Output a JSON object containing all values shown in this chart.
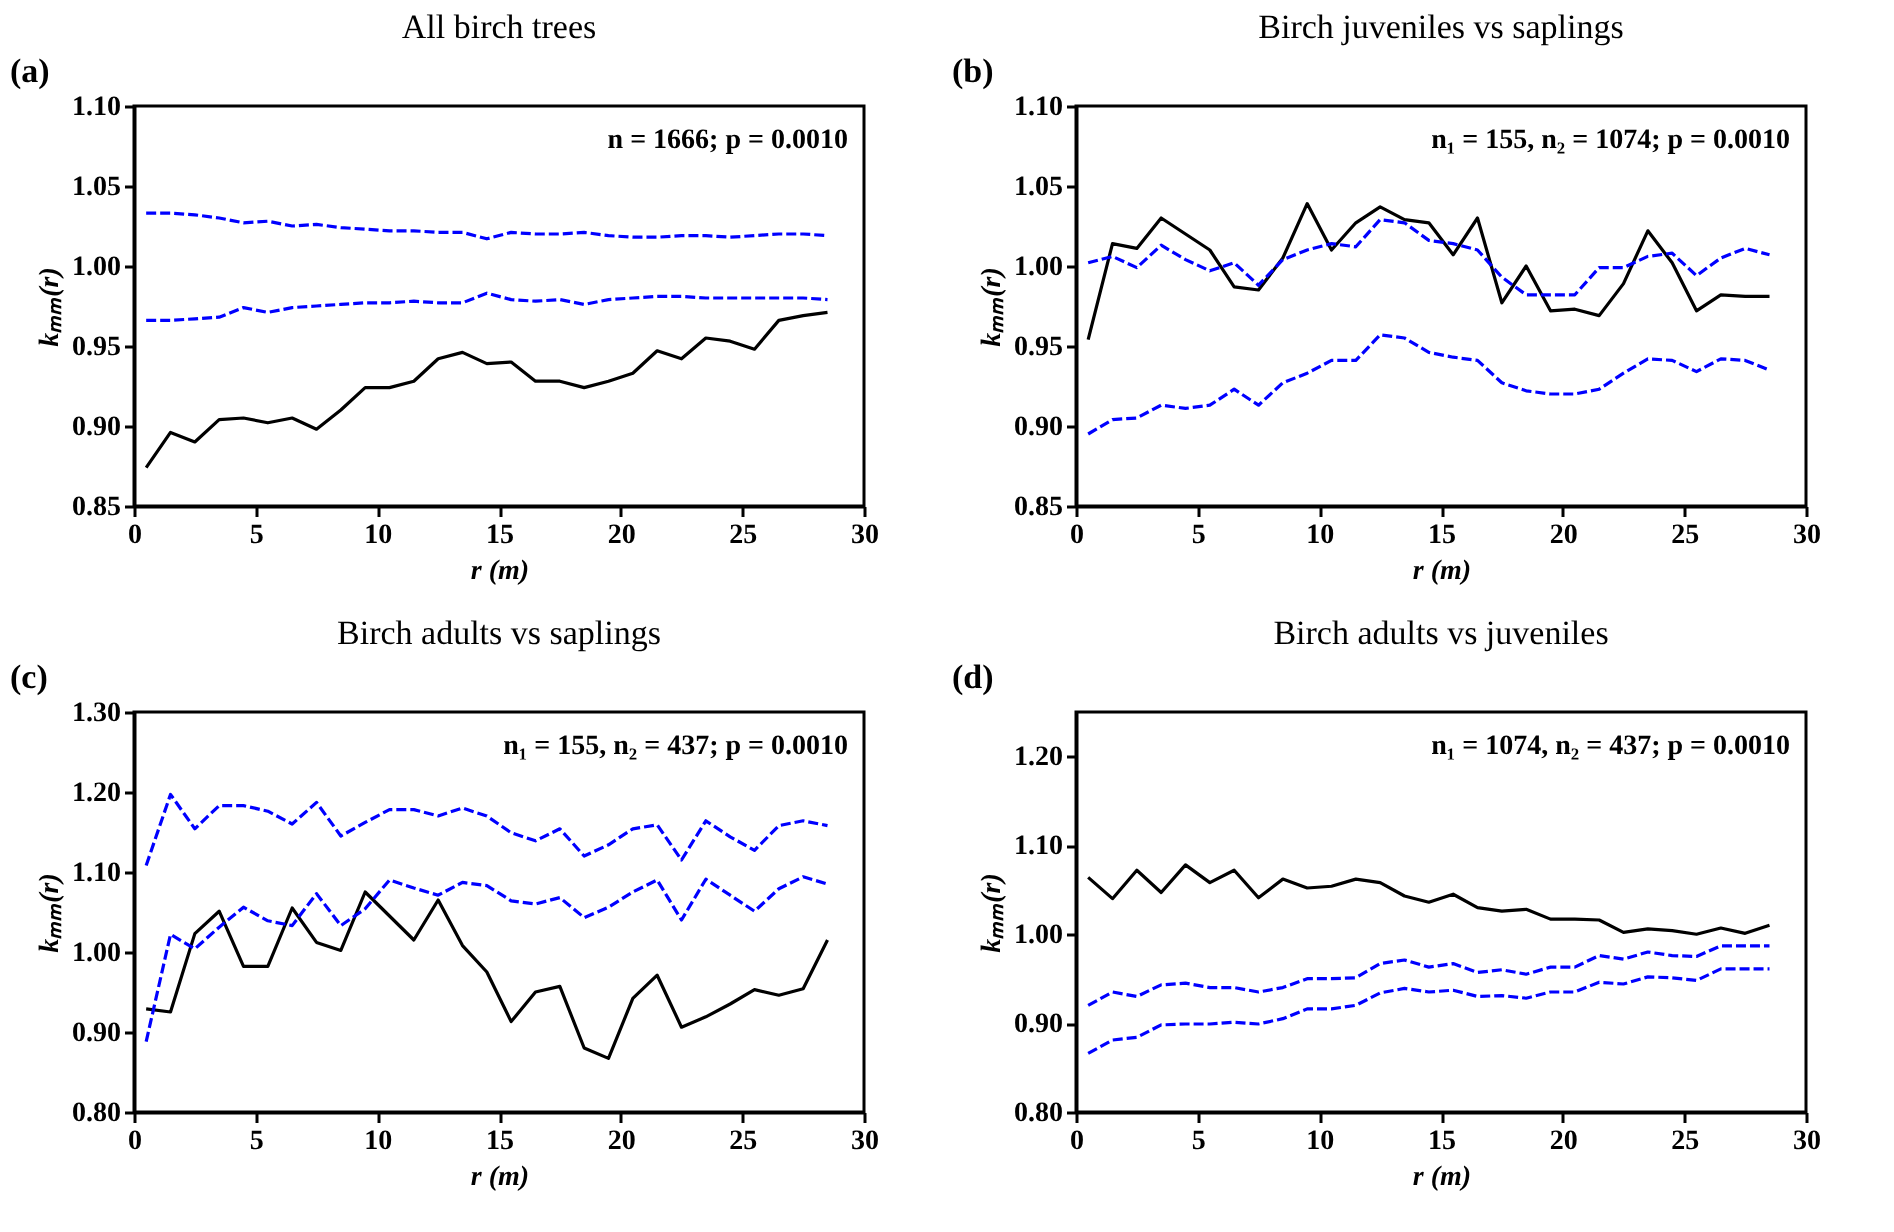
{
  "chart_data": [
    {
      "type": "line",
      "title": "All birch trees",
      "xlabel": "r (m)",
      "ylabel": "kₘₘ(r)",
      "annotations": [
        "(a)",
        "n = 1666; p = 0.0010"
      ],
      "x": [
        0.5,
        1.5,
        2.5,
        3.5,
        4.5,
        5.5,
        6.5,
        7.5,
        8.5,
        9.5,
        10.5,
        11.5,
        12.5,
        13.5,
        14.5,
        15.5,
        16.5,
        17.5,
        18.5,
        19.5,
        20.5,
        21.5,
        22.5,
        23.5,
        24.5,
        25.5,
        26.5,
        27.5,
        28.5
      ],
      "xlim": [
        0,
        30
      ],
      "xticks": [
        0,
        5,
        10,
        15,
        20,
        25,
        30
      ],
      "ylim": [
        0.85,
        1.1
      ],
      "yticks": [
        0.85,
        {
          "value": 0.9,
          "label": "0.90"
        },
        0.95,
        {
          "value": 1,
          "label": "1.00"
        },
        1.05,
        {
          "value": 1.1,
          "label": "1.10"
        }
      ],
      "series": [
        {
          "color": "#000000",
          "line_style": "solid",
          "values": [
            0.874,
            0.896,
            0.89,
            0.904,
            0.905,
            0.902,
            0.905,
            0.898,
            0.91,
            0.924,
            0.924,
            0.928,
            0.942,
            0.946,
            0.939,
            0.94,
            0.928,
            0.928,
            0.924,
            0.928,
            0.933,
            0.947,
            0.942,
            0.955,
            0.953,
            0.948,
            0.966,
            0.969,
            0.971
          ]
        },
        {
          "color": "#0000ff",
          "line_style": "dashed",
          "values": [
            1.033,
            1.033,
            1.032,
            1.03,
            1.027,
            1.028,
            1.025,
            1.026,
            1.024,
            1.023,
            1.022,
            1.022,
            1.021,
            1.021,
            1.017,
            1.021,
            1.02,
            1.02,
            1.021,
            1.019,
            1.018,
            1.018,
            1.019,
            1.019,
            1.018,
            1.019,
            1.02,
            1.02,
            1.019
          ]
        },
        {
          "color": "#0000ff",
          "line_style": "dashed",
          "values": [
            0.966,
            0.966,
            0.967,
            0.968,
            0.974,
            0.971,
            0.974,
            0.975,
            0.976,
            0.977,
            0.977,
            0.978,
            0.977,
            0.977,
            0.983,
            0.979,
            0.978,
            0.979,
            0.976,
            0.979,
            0.98,
            0.981,
            0.981,
            0.98,
            0.98,
            0.98,
            0.98,
            0.98,
            0.979
          ]
        }
      ]
    },
    {
      "type": "line",
      "title": "Birch juveniles vs saplings",
      "xlabel": "r (m)",
      "ylabel": "kₘₘ(r)",
      "annotations": [
        "(b)",
        "n₁ = 155, n₂ = 1074; p = 0.0010"
      ],
      "x": [
        0.5,
        1.5,
        2.5,
        3.5,
        4.5,
        5.5,
        6.5,
        7.5,
        8.5,
        9.5,
        10.5,
        11.5,
        12.5,
        13.5,
        14.5,
        15.5,
        16.5,
        17.5,
        18.5,
        19.5,
        20.5,
        21.5,
        22.5,
        23.5,
        24.5,
        25.5,
        26.5,
        27.5,
        28.5
      ],
      "xlim": [
        0,
        30
      ],
      "xticks": [
        0,
        5,
        10,
        15,
        20,
        25,
        30
      ],
      "ylim": [
        0.85,
        1.1
      ],
      "yticks": [
        0.85,
        {
          "value": 0.9,
          "label": "0.90"
        },
        0.95,
        {
          "value": 1,
          "label": "1.00"
        },
        1.05,
        {
          "value": 1.1,
          "label": "1.10"
        }
      ],
      "series": [
        {
          "color": "#000000",
          "line_style": "solid",
          "values": [
            0.954,
            1.014,
            1.011,
            1.03,
            1.02,
            1.01,
            0.987,
            0.985,
            1.005,
            1.039,
            1.01,
            1.027,
            1.037,
            1.029,
            1.027,
            1.007,
            1.03,
            0.977,
            1.0,
            0.972,
            0.973,
            0.969,
            0.989,
            1.022,
            1.002,
            0.972,
            0.982,
            0.981,
            0.981
          ]
        },
        {
          "color": "#0000ff",
          "line_style": "dashed",
          "values": [
            1.002,
            1.006,
            0.999,
            1.013,
            1.004,
            0.997,
            1.002,
            0.988,
            1.004,
            1.01,
            1.014,
            1.012,
            1.029,
            1.027,
            1.016,
            1.014,
            1.01,
            0.993,
            0.982,
            0.982,
            0.982,
            0.999,
            0.999,
            1.006,
            1.008,
            0.994,
            1.005,
            1.011,
            1.007
          ]
        },
        {
          "color": "#0000ff",
          "line_style": "dashed",
          "values": [
            0.895,
            0.904,
            0.905,
            0.913,
            0.911,
            0.913,
            0.923,
            0.913,
            0.927,
            0.933,
            0.941,
            0.941,
            0.957,
            0.955,
            0.946,
            0.943,
            0.941,
            0.927,
            0.922,
            0.92,
            0.92,
            0.923,
            0.933,
            0.942,
            0.941,
            0.934,
            0.942,
            0.941,
            0.935
          ]
        }
      ]
    },
    {
      "type": "line",
      "title": "Birch adults vs saplings",
      "xlabel": "r (m)",
      "ylabel": "kₘₘ(r)",
      "annotations": [
        "(c)",
        "n₁ = 155, n₂ = 437; p = 0.0010"
      ],
      "x": [
        0.5,
        1.5,
        2.5,
        3.5,
        4.5,
        5.5,
        6.5,
        7.5,
        8.5,
        9.5,
        10.5,
        11.5,
        12.5,
        13.5,
        14.5,
        15.5,
        16.5,
        17.5,
        18.5,
        19.5,
        20.5,
        21.5,
        22.5,
        23.5,
        24.5,
        25.5,
        26.5,
        27.5,
        28.5
      ],
      "xlim": [
        0,
        30
      ],
      "xticks": [
        0,
        5,
        10,
        15,
        20,
        25,
        30
      ],
      "ylim": [
        0.8,
        1.3
      ],
      "yticks": [
        {
          "value": 0.8,
          "label": "0.80"
        },
        {
          "value": 0.9,
          "label": "0.90"
        },
        {
          "value": 1,
          "label": "1.00"
        },
        {
          "value": 1.1,
          "label": "1.10"
        },
        {
          "value": 1.2,
          "label": "1.20"
        },
        {
          "value": 1.3,
          "label": "1.30"
        }
      ],
      "series": [
        {
          "color": "#000000",
          "line_style": "solid",
          "values": [
            0.929,
            0.925,
            1.023,
            1.051,
            0.982,
            0.982,
            1.055,
            1.012,
            1.002,
            1.075,
            1.045,
            1.015,
            1.065,
            1.008,
            0.975,
            0.913,
            0.95,
            0.957,
            0.88,
            0.867,
            0.942,
            0.971,
            0.906,
            0.919,
            0.935,
            0.953,
            0.946,
            0.954,
            1.015
          ]
        },
        {
          "color": "#0000ff",
          "line_style": "dashed",
          "values": [
            1.108,
            1.197,
            1.154,
            1.183,
            1.183,
            1.176,
            1.16,
            1.187,
            1.145,
            1.162,
            1.178,
            1.178,
            1.17,
            1.18,
            1.17,
            1.149,
            1.139,
            1.154,
            1.12,
            1.134,
            1.154,
            1.159,
            1.115,
            1.164,
            1.144,
            1.127,
            1.158,
            1.164,
            1.158
          ]
        },
        {
          "color": "#0000ff",
          "line_style": "dashed",
          "values": [
            0.888,
            1.022,
            1.004,
            1.031,
            1.056,
            1.039,
            1.033,
            1.073,
            1.033,
            1.054,
            1.09,
            1.08,
            1.071,
            1.087,
            1.083,
            1.064,
            1.06,
            1.068,
            1.043,
            1.056,
            1.075,
            1.09,
            1.04,
            1.091,
            1.071,
            1.051,
            1.079,
            1.094,
            1.085
          ]
        }
      ]
    },
    {
      "type": "line",
      "title": "Birch adults vs juveniles",
      "xlabel": "r (m)",
      "ylabel": "kₘₘ(r)",
      "annotations": [
        "(d)",
        "n₁ = 1074, n₂ = 437; p = 0.0010"
      ],
      "x": [
        0.5,
        1.5,
        2.5,
        3.5,
        4.5,
        5.5,
        6.5,
        7.5,
        8.5,
        9.5,
        10.5,
        11.5,
        12.5,
        13.5,
        14.5,
        15.5,
        16.5,
        17.5,
        18.5,
        19.5,
        20.5,
        21.5,
        22.5,
        23.5,
        24.5,
        25.5,
        26.5,
        27.5,
        28.5
      ],
      "xlim": [
        0,
        30
      ],
      "xticks": [
        0,
        5,
        10,
        15,
        20,
        25,
        30
      ],
      "ylim": [
        0.8,
        1.25
      ],
      "yticks": [
        {
          "value": 0.8,
          "label": "0.80"
        },
        {
          "value": 0.9,
          "label": "0.90"
        },
        {
          "value": 1,
          "label": "1.00"
        },
        {
          "value": 1.1,
          "label": "1.10"
        },
        {
          "value": 1.2,
          "label": "1.20"
        }
      ],
      "series": [
        {
          "color": "#000000",
          "line_style": "solid",
          "values": [
            1.064,
            1.04,
            1.072,
            1.047,
            1.078,
            1.058,
            1.072,
            1.041,
            1.062,
            1.052,
            1.054,
            1.062,
            1.058,
            1.043,
            1.036,
            1.045,
            1.03,
            1.026,
            1.028,
            1.017,
            1.017,
            1.016,
            1.002,
            1.006,
            1.004,
            1.0,
            1.007,
            1.001,
            1.01
          ]
        },
        {
          "color": "#0000ff",
          "line_style": "dashed",
          "values": [
            0.92,
            0.935,
            0.93,
            0.943,
            0.945,
            0.94,
            0.94,
            0.935,
            0.94,
            0.95,
            0.95,
            0.951,
            0.967,
            0.971,
            0.963,
            0.967,
            0.957,
            0.96,
            0.955,
            0.963,
            0.963,
            0.976,
            0.972,
            0.98,
            0.976,
            0.975,
            0.987,
            0.987,
            0.987
          ]
        },
        {
          "color": "#0000ff",
          "line_style": "dashed",
          "values": [
            0.866,
            0.881,
            0.884,
            0.898,
            0.899,
            0.899,
            0.901,
            0.899,
            0.905,
            0.916,
            0.916,
            0.92,
            0.934,
            0.939,
            0.935,
            0.937,
            0.93,
            0.931,
            0.928,
            0.935,
            0.935,
            0.946,
            0.944,
            0.952,
            0.951,
            0.948,
            0.961,
            0.961,
            0.961
          ]
        }
      ]
    }
  ]
}
